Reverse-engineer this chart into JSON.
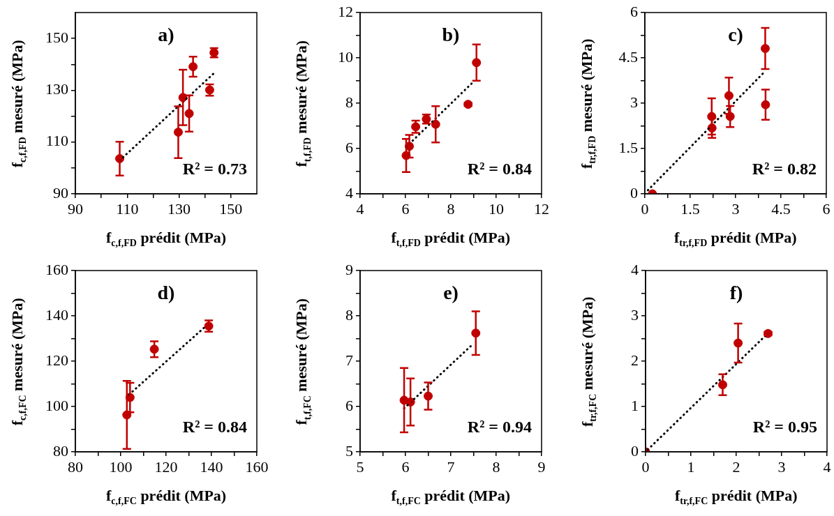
{
  "chart_data": [
    {
      "type": "scatter",
      "xlabel": "f$_{c,f,FD}$ prédit (MPa)",
      "ylabel": "f$_{c,f,FD}$ mesuré (MPa)",
      "annotations": [
        "a)",
        "R² = 0.73"
      ],
      "xlim": [
        90,
        160
      ],
      "ylim": [
        90,
        160
      ],
      "xticks": [
        90,
        {
          "value": 100,
          "label": null
        },
        110,
        {
          "value": 120,
          "label": null
        },
        130,
        {
          "value": 140,
          "label": null
        },
        150
      ],
      "yticks": [
        90,
        {
          "value": 100,
          "label": null
        },
        110,
        {
          "value": 120,
          "label": null
        },
        130,
        {
          "value": 140,
          "label": null
        },
        150
      ],
      "series": [
        {
          "type": "scatter",
          "color": "#c00000",
          "marker": "circle",
          "x": [
            107.1,
            129.7,
            131.5,
            133.9,
            135.4,
            141.8,
            143.5
          ],
          "values": [
            103.6,
            113.8,
            127.2,
            121,
            139.1,
            130.1,
            144.5
          ],
          "errors": [
            6.5,
            10,
            10.7,
            7,
            3.9,
            2.2,
            1.8
          ]
        },
        {
          "type": "line",
          "color": "#000000",
          "marker": "none",
          "line_style": "dotted",
          "x": [
            107.1,
            143.5
          ],
          "values": [
            102.9,
            136.6
          ]
        }
      ]
    },
    {
      "type": "scatter",
      "xlabel": "f$_{t,f,FD}$ prédit (MPa)",
      "ylabel": "f$_{t,f,FD}$ mesuré (MPa)",
      "annotations": [
        "b)",
        "R² = 0.84"
      ],
      "xlim": [
        4,
        12
      ],
      "ylim": [
        4,
        12
      ],
      "xticks": [
        4,
        {
          "value": 5,
          "label": null
        },
        6,
        {
          "value": 7,
          "label": null
        },
        8,
        {
          "value": 9,
          "label": null
        },
        10,
        {
          "value": 11,
          "label": null
        },
        12
      ],
      "yticks": [
        4,
        {
          "value": 5,
          "label": null
        },
        6,
        {
          "value": 7,
          "label": null
        },
        8,
        {
          "value": 9,
          "label": null
        },
        10,
        {
          "value": 11,
          "label": null
        },
        12
      ],
      "series": [
        {
          "type": "scatter",
          "color": "#c00000",
          "marker": "circle",
          "x": [
            6.03,
            6.17,
            6.45,
            6.92,
            7.33,
            8.76,
            9.13
          ],
          "values": [
            5.69,
            6.1,
            6.96,
            7.3,
            7.07,
            7.95,
            9.79
          ],
          "errors": [
            0.73,
            0.5,
            0.27,
            0.2,
            0.8,
            0.07,
            0.8
          ]
        },
        {
          "type": "line",
          "color": "#000000",
          "marker": "none",
          "line_style": "dotted",
          "x": [
            6.03,
            9.03
          ],
          "values": [
            6.07,
            8.98
          ]
        }
      ]
    },
    {
      "type": "scatter",
      "xlabel": "f$_{tr,f,FD}$ prédit (MPa)",
      "ylabel": "f$_{tr,f,FD}$ mesuré (MPa)",
      "annotations": [
        "c)",
        "R² = 0.82"
      ],
      "xlim": [
        0,
        6
      ],
      "ylim": [
        0,
        6
      ],
      "xticks": [
        0,
        {
          "value": 0.75,
          "label": null
        },
        1.5,
        {
          "value": 2.25,
          "label": null
        },
        3,
        {
          "value": 3.75,
          "label": null
        },
        4.5,
        {
          "value": 5.25,
          "label": null
        },
        6
      ],
      "yticks": [
        0,
        {
          "value": 0.75,
          "label": null
        },
        1.5,
        {
          "value": 2.25,
          "label": null
        },
        3,
        {
          "value": 3.75,
          "label": null
        },
        4.5,
        {
          "value": 5.25,
          "label": null
        },
        6
      ],
      "series": [
        {
          "type": "scatter",
          "color": "#c00000",
          "marker": "circle",
          "x": [
            0.25,
            2.21,
            2.22,
            2.78,
            2.82,
            3.98,
            3.99
          ],
          "values": [
            0,
            2.56,
            2.18,
            3.25,
            2.56,
            4.81,
            2.95
          ],
          "errors": [
            null,
            0.6,
            0.33,
            0.6,
            0.35,
            0.68,
            0.5
          ]
        },
        {
          "type": "line",
          "color": "#000000",
          "marker": "none",
          "line_style": "dotted",
          "x": [
            0.1,
            3.9
          ],
          "values": [
            0.12,
            3.98
          ]
        }
      ]
    },
    {
      "type": "scatter",
      "xlabel": "f$_{c,f,FC}$ prédit (MPa)",
      "ylabel": "f$_{c,f,FC}$ mesuré (MPa)",
      "annotations": [
        "d)",
        "R² = 0.84"
      ],
      "xlim": [
        80,
        160
      ],
      "ylim": [
        80,
        160
      ],
      "xticks": [
        80,
        {
          "value": 90,
          "label": null
        },
        100,
        {
          "value": 110,
          "label": null
        },
        120,
        {
          "value": 130,
          "label": null
        },
        140,
        {
          "value": 150,
          "label": null
        },
        160
      ],
      "yticks": [
        80,
        {
          "value": 90,
          "label": null
        },
        100,
        {
          "value": 110,
          "label": null
        },
        120,
        {
          "value": 130,
          "label": null
        },
        140,
        {
          "value": 150,
          "label": null
        },
        160
      ],
      "series": [
        {
          "type": "scatter",
          "color": "#c00000",
          "marker": "circle",
          "x": [
            102.7,
            104.1,
            114.8,
            138.8
          ],
          "values": [
            96.3,
            104,
            125.3,
            135.5
          ],
          "errors": [
            15,
            6.5,
            3.5,
            2.5
          ]
        },
        {
          "type": "line",
          "color": "#000000",
          "marker": "none",
          "line_style": "dotted",
          "x": [
            103.7,
            138
          ],
          "values": [
            105.3,
            135.9
          ]
        }
      ]
    },
    {
      "type": "scatter",
      "xlabel": "f$_{t,f,FC}$ prédit (MPa)",
      "ylabel": "f$_{t,f,FC}$ mesuré (MPa)",
      "annotations": [
        "e)",
        "R² = 0.94"
      ],
      "xlim": [
        5,
        9
      ],
      "ylim": [
        5,
        9
      ],
      "xticks": [
        5,
        {
          "value": 5.5,
          "label": null
        },
        6,
        {
          "value": 6.5,
          "label": null
        },
        7,
        {
          "value": 7.5,
          "label": null
        },
        8,
        {
          "value": 8.5,
          "label": null
        },
        9
      ],
      "yticks": [
        5,
        {
          "value": 5.5,
          "label": null
        },
        6,
        {
          "value": 6.5,
          "label": null
        },
        7,
        {
          "value": 7.5,
          "label": null
        },
        8,
        {
          "value": 8.5,
          "label": null
        },
        9
      ],
      "series": [
        {
          "type": "scatter",
          "color": "#c00000",
          "marker": "circle",
          "x": [
            5.97,
            6.11,
            6.5,
            7.55
          ],
          "values": [
            6.14,
            6.1,
            6.23,
            7.62
          ],
          "errors": [
            0.71,
            0.52,
            0.3,
            0.48
          ]
        },
        {
          "type": "line",
          "color": "#000000",
          "marker": "none",
          "line_style": "dotted",
          "x": [
            5.97,
            7.5
          ],
          "values": [
            5.96,
            7.39
          ]
        }
      ]
    },
    {
      "type": "scatter",
      "xlabel": "f$_{tr,f,FC}$ prédit (MPa)",
      "ylabel": "f$_{tr,f,FC}$ mesuré (MPa)",
      "annotations": [
        "f)",
        "R² = 0.95"
      ],
      "xlim": [
        0,
        4
      ],
      "ylim": [
        0,
        4
      ],
      "xticks": [
        0,
        {
          "value": 0.5,
          "label": null
        },
        1,
        {
          "value": 1.5,
          "label": null
        },
        2,
        {
          "value": 2.5,
          "label": null
        },
        3,
        {
          "value": 3.5,
          "label": null
        },
        4
      ],
      "yticks": [
        0,
        {
          "value": 0.5,
          "label": null
        },
        1,
        {
          "value": 1.5,
          "label": null
        },
        2,
        {
          "value": 2.5,
          "label": null
        },
        3,
        {
          "value": 3.5,
          "label": null
        },
        4
      ],
      "series": [
        {
          "type": "scatter",
          "color": "#c00000",
          "marker": "circle",
          "x": [
            0,
            1.7,
            2.04,
            2.7
          ],
          "values": [
            0,
            1.48,
            2.4,
            2.61
          ],
          "errors": [
            null,
            0.23,
            0.43,
            0.04
          ]
        },
        {
          "type": "line",
          "color": "#000000",
          "marker": "none",
          "line_style": "dotted",
          "x": [
            0.05,
            2.65
          ],
          "values": [
            0.05,
            2.57
          ]
        }
      ]
    }
  ]
}
